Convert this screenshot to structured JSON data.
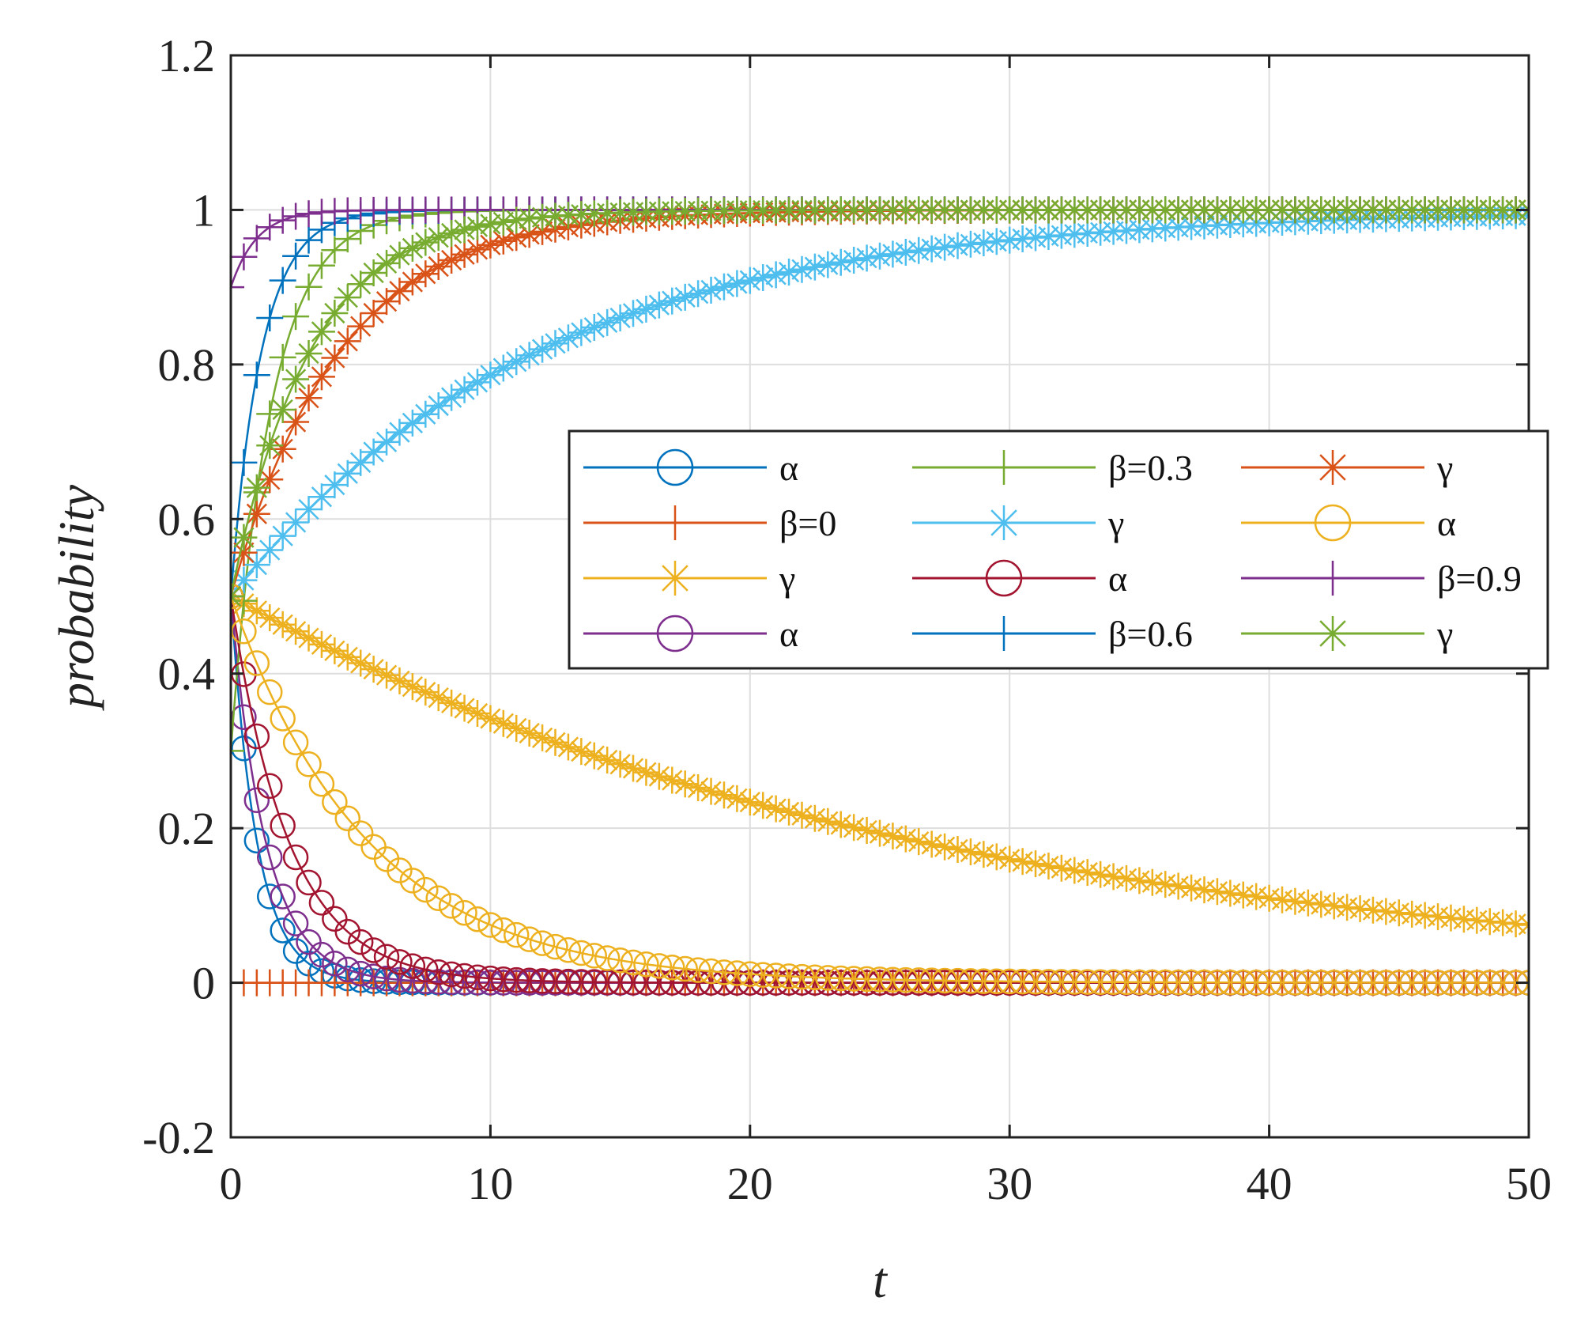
{
  "chart_data": {
    "type": "line",
    "title": "",
    "xlabel": "t",
    "ylabel": "probability",
    "xlim": [
      0,
      50
    ],
    "ylim": [
      -0.2,
      1.2
    ],
    "xticks": [
      "0",
      "10",
      "20",
      "30",
      "40",
      "50"
    ],
    "yticks": [
      "-0.2",
      "0",
      "0.2",
      "0.4",
      "0.6",
      "0.8",
      "1",
      "1.2"
    ],
    "xtick_values": [
      0,
      10,
      20,
      30,
      40,
      50
    ],
    "ytick_values": [
      -0.2,
      0,
      0.2,
      0.4,
      0.6,
      0.8,
      1,
      1.2
    ],
    "grid": true,
    "legend_position": "center-right",
    "legend_columns": 3,
    "series": [
      {
        "name": "α",
        "group": "β=0",
        "color": "#0072BD",
        "marker": "circle",
        "model": {
          "kind": "exp",
          "start": 0.5,
          "end": 0.0,
          "rate": 1.0
        }
      },
      {
        "name": "β=0",
        "group": "β=0",
        "color": "#D95319",
        "marker": "plus",
        "model": {
          "kind": "const",
          "value": 0.0
        }
      },
      {
        "name": "γ",
        "group": "β=0",
        "color": "#EDB120",
        "marker": "asterisk",
        "model": {
          "kind": "exp",
          "start": 0.5,
          "end": 0.0,
          "rate": 0.038
        }
      },
      {
        "name": "α",
        "group": "β=0.3",
        "color": "#7E2F8E",
        "marker": "circle",
        "model": {
          "kind": "exp",
          "start": 0.5,
          "end": 0.0,
          "rate": 0.75
        }
      },
      {
        "name": "β=0.3",
        "group": "β=0.3",
        "color": "#77AC30",
        "marker": "plus",
        "model": {
          "kind": "exp",
          "start": 0.3,
          "end": 1.0,
          "rate": 0.65
        }
      },
      {
        "name": "γ",
        "group": "β=0.3",
        "color": "#4DBEEE",
        "marker": "asterisk",
        "model": {
          "kind": "exp",
          "start": 0.5,
          "end": 1.0,
          "rate": 0.085
        }
      },
      {
        "name": "α",
        "group": "β=0.6",
        "color": "#A2142F",
        "marker": "circle",
        "model": {
          "kind": "exp",
          "start": 0.5,
          "end": 0.0,
          "rate": 0.45
        }
      },
      {
        "name": "β=0.6",
        "group": "β=0.6",
        "color": "#0072BD",
        "marker": "plus",
        "model": {
          "kind": "exp",
          "start": 0.5,
          "end": 1.0,
          "rate": 0.85
        }
      },
      {
        "name": "γ",
        "group": "β=0.6",
        "color": "#D95319",
        "marker": "asterisk",
        "model": {
          "kind": "exp",
          "start": 0.5,
          "end": 1.0,
          "rate": 0.24
        }
      },
      {
        "name": "α",
        "group": "β=0.9",
        "color": "#EDB120",
        "marker": "circle",
        "model": {
          "kind": "exp",
          "start": 0.5,
          "end": 0.0,
          "rate": 0.19
        }
      },
      {
        "name": "β=0.9",
        "group": "β=0.9",
        "color": "#7E2F8E",
        "marker": "plus",
        "model": {
          "kind": "exp",
          "start": 0.9,
          "end": 1.0,
          "rate": 1.0
        }
      },
      {
        "name": "γ",
        "group": "β=0.9",
        "color": "#77AC30",
        "marker": "asterisk",
        "model": {
          "kind": "exp",
          "start": 0.5,
          "end": 1.0,
          "rate": 0.33
        }
      }
    ],
    "marker_step": 0.5
  }
}
